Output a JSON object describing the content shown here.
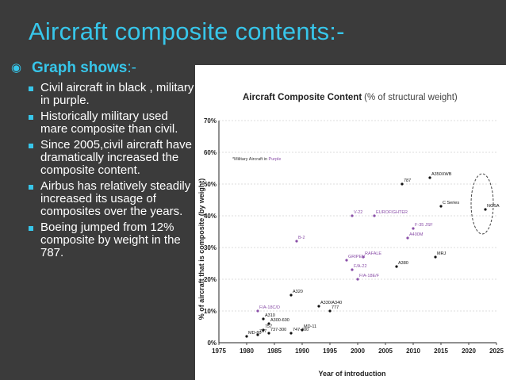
{
  "slide": {
    "title": "Aircraft composite contents:-",
    "main_bullet": {
      "text": "Graph shows",
      "suffix": ":-"
    },
    "sub_bullets": [
      "Civil aircraft in black , military in purple.",
      "Historically military used mare composite than civil.",
      "Since 2005,civil aircraft have dramatically increased the composite content.",
      "Airbus has relatively steadily increased its usage of composites over the years.",
      "Boeing jumped from 12% composite by weight in the 787."
    ]
  },
  "colors": {
    "title": "#37c6ea",
    "background": "#3b3b3b",
    "civil": "#111111",
    "military": "#8a4fa8"
  },
  "chart_data": {
    "type": "scatter",
    "title": "Aircraft Composite Content",
    "subtitle": "(% of structural weight)",
    "xlabel": "Year of introduction",
    "ylabel": "% of aircraft that is composite (by weight)",
    "xlim": [
      1975,
      2025
    ],
    "ylim": [
      0,
      70
    ],
    "x_ticks": [
      "1975",
      "1980",
      "1985",
      "1990",
      "1995",
      "2000",
      "2005",
      "2010",
      "2015",
      "2020",
      "2025"
    ],
    "y_ticks": [
      "0%",
      "10%",
      "20%",
      "30%",
      "40%",
      "50%",
      "60%",
      "70%"
    ],
    "legend": {
      "prefix": "*Military Aircraft in ",
      "highlight": "Purple"
    },
    "series": [
      {
        "name": "Civil",
        "points": [
          {
            "label": "MD-80",
            "x": 1980,
            "y": 2
          },
          {
            "label": "757",
            "x": 1983,
            "y": 4
          },
          {
            "label": "767",
            "x": 1982,
            "y": 2.5
          },
          {
            "label": "737-300",
            "x": 1984,
            "y": 3
          },
          {
            "label": "A310",
            "x": 1983,
            "y": 7.5
          },
          {
            "label": "A300-600",
            "x": 1984,
            "y": 6
          },
          {
            "label": "747-400",
            "x": 1988,
            "y": 3
          },
          {
            "label": "A320",
            "x": 1988,
            "y": 15
          },
          {
            "label": "A330/A340",
            "x": 1993,
            "y": 11.5
          },
          {
            "label": "777",
            "x": 1995,
            "y": 10
          },
          {
            "label": "MD-11",
            "x": 1990,
            "y": 4
          },
          {
            "label": "787",
            "x": 2008,
            "y": 50
          },
          {
            "label": "A350XWB",
            "x": 2013,
            "y": 52
          },
          {
            "label": "C Series",
            "x": 2015,
            "y": 43
          },
          {
            "label": "A380",
            "x": 2007,
            "y": 24
          },
          {
            "label": "MRJ",
            "x": 2014,
            "y": 27
          },
          {
            "label": "NGSA",
            "x": 2023,
            "y": 42
          }
        ]
      },
      {
        "name": "Military",
        "points": [
          {
            "label": "F/A-18C/D",
            "x": 1982,
            "y": 10
          },
          {
            "label": "B-2",
            "x": 1989,
            "y": 32
          },
          {
            "label": "V-22",
            "x": 1999,
            "y": 40
          },
          {
            "label": "EUROFIGHTER",
            "x": 2003,
            "y": 40
          },
          {
            "label": "GRIPEN",
            "x": 1998,
            "y": 26
          },
          {
            "label": "F/A-22",
            "x": 1999,
            "y": 23
          },
          {
            "label": "RAFALE",
            "x": 2001,
            "y": 27
          },
          {
            "label": "F/A-18E/F",
            "x": 2000,
            "y": 20
          },
          {
            "label": "A400M",
            "x": 2009,
            "y": 33
          },
          {
            "label": "F-35 JSF",
            "x": 2010,
            "y": 36
          }
        ]
      }
    ]
  }
}
